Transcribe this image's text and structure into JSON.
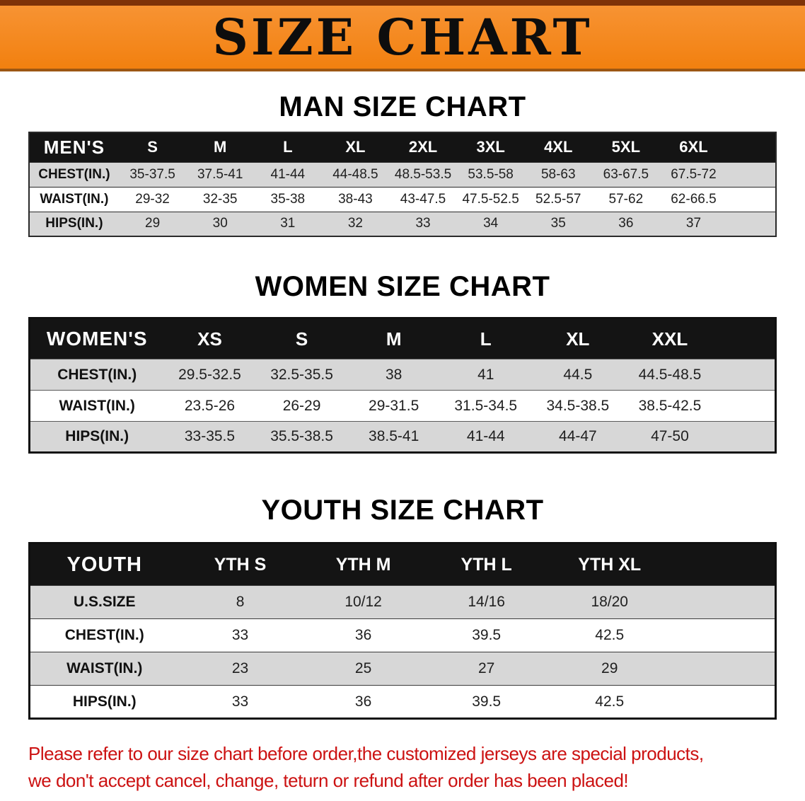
{
  "banner": {
    "title": "SIZE CHART",
    "bg_color": "#f2800f",
    "edge_color": "#7e3208"
  },
  "headings": {
    "men": "MAN SIZE CHART",
    "women": "WOMEN SIZE CHART",
    "youth": "YOUTH SIZE CHART"
  },
  "chart_data": [
    {
      "type": "table",
      "title": "MAN SIZE CHART",
      "header": [
        "MEN'S",
        "S",
        "M",
        "L",
        "XL",
        "2XL",
        "3XL",
        "4XL",
        "5XL",
        "6XL"
      ],
      "rows": [
        {
          "label": "CHEST(IN.)",
          "values": [
            "35-37.5",
            "37.5-41",
            "41-44",
            "44-48.5",
            "48.5-53.5",
            "53.5-58",
            "58-63",
            "63-67.5",
            "67.5-72"
          ]
        },
        {
          "label": "WAIST(IN.)",
          "values": [
            "29-32",
            "32-35",
            "35-38",
            "38-43",
            "43-47.5",
            "47.5-52.5",
            "52.5-57",
            "57-62",
            "62-66.5"
          ]
        },
        {
          "label": "HIPS(IN.)",
          "values": [
            "29",
            "30",
            "31",
            "32",
            "33",
            "34",
            "35",
            "36",
            "37"
          ]
        }
      ],
      "layout": {
        "label_col_pct": 12,
        "value_col_pct": 9.05,
        "spacer_pct": 6.5
      }
    },
    {
      "type": "table",
      "title": "WOMEN SIZE CHART",
      "header": [
        "WOMEN'S",
        "XS",
        "S",
        "M",
        "L",
        "XL",
        "XXL"
      ],
      "rows": [
        {
          "label": "CHEST(IN.)",
          "values": [
            "29.5-32.5",
            "32.5-35.5",
            "38",
            "41",
            "44.5",
            "44.5-48.5"
          ]
        },
        {
          "label": "WAIST(IN.)",
          "values": [
            "23.5-26",
            "26-29",
            "29-31.5",
            "31.5-34.5",
            "34.5-38.5",
            "38.5-42.5"
          ]
        },
        {
          "label": "HIPS(IN.)",
          "values": [
            "33-35.5",
            "35.5-38.5",
            "38.5-41",
            "41-44",
            "44-47",
            "47-50"
          ]
        }
      ],
      "layout": {
        "label_col_pct": 18,
        "value_col_pct": 12.33,
        "spacer_pct": 8
      }
    },
    {
      "type": "table",
      "title": "YOUTH SIZE CHART",
      "header": [
        "YOUTH",
        "YTH S",
        "YTH M",
        "YTH L",
        "YTH XL"
      ],
      "rows": [
        {
          "label": "U.S.SIZE",
          "values": [
            "8",
            "10/12",
            "14/16",
            "18/20"
          ]
        },
        {
          "label": "CHEST(IN.)",
          "values": [
            "33",
            "36",
            "39.5",
            "42.5"
          ]
        },
        {
          "label": "WAIST(IN.)",
          "values": [
            "23",
            "25",
            "27",
            "29"
          ]
        },
        {
          "label": "HIPS(IN.)",
          "values": [
            "33",
            "36",
            "39.5",
            "42.5"
          ]
        }
      ],
      "layout": {
        "label_col_pct": 20,
        "value_col_pct": 16.5,
        "spacer_pct": 14
      }
    }
  ],
  "disclaimer": {
    "lines": [
      "Please refer to our size chart before order,the customized jerseys are special products,",
      "we don't accept cancel, change, teturn or refund after order has been placed!"
    ],
    "color": "#cc1212"
  }
}
